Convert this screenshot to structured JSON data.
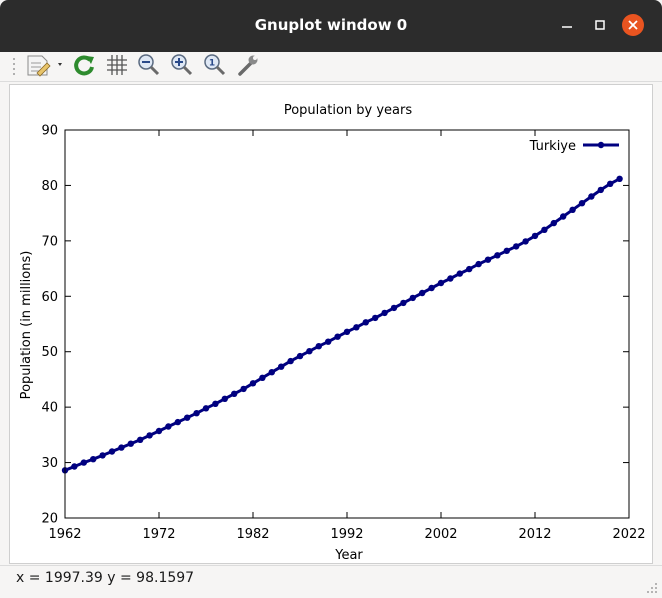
{
  "window": {
    "title": "Gnuplot window 0",
    "controls": [
      "minimize-icon",
      "maximize-icon",
      "close-icon"
    ],
    "close_color": "#e95420"
  },
  "toolbar": {
    "items": [
      {
        "icon": "export-icon"
      },
      {
        "icon": "replot-icon"
      },
      {
        "icon": "grid-icon"
      },
      {
        "icon": "zoom-out-icon"
      },
      {
        "icon": "zoom-in-icon"
      },
      {
        "icon": "zoom-reset-icon"
      },
      {
        "icon": "settings-icon"
      }
    ]
  },
  "status": {
    "text": "x = 1997.39 y = 98.1597"
  },
  "chart_data": {
    "type": "line",
    "title": "Population by years",
    "xlabel": "Year",
    "ylabel": "Population (in millions)",
    "xlim": [
      1962,
      2022
    ],
    "ylim": [
      20,
      90
    ],
    "xticks": [
      1962,
      1972,
      1982,
      1992,
      2002,
      2012,
      2022
    ],
    "yticks": [
      20,
      30,
      40,
      50,
      60,
      70,
      80,
      90
    ],
    "grid": false,
    "legend_position": "top-right",
    "series": [
      {
        "name": "Turkiye",
        "color": "#000080",
        "x": [
          1962,
          1963,
          1964,
          1965,
          1966,
          1967,
          1968,
          1969,
          1970,
          1971,
          1972,
          1973,
          1974,
          1975,
          1976,
          1977,
          1978,
          1979,
          1980,
          1981,
          1982,
          1983,
          1984,
          1985,
          1986,
          1987,
          1988,
          1989,
          1990,
          1991,
          1992,
          1993,
          1994,
          1995,
          1996,
          1997,
          1998,
          1999,
          2000,
          2001,
          2002,
          2003,
          2004,
          2005,
          2006,
          2007,
          2008,
          2009,
          2010,
          2011,
          2012,
          2013,
          2014,
          2015,
          2016,
          2017,
          2018,
          2019,
          2020,
          2021
        ],
        "values": [
          28.6,
          29.3,
          30.0,
          30.6,
          31.3,
          32.0,
          32.7,
          33.4,
          34.1,
          34.9,
          35.7,
          36.5,
          37.3,
          38.1,
          38.9,
          39.8,
          40.6,
          41.5,
          42.4,
          43.3,
          44.3,
          45.3,
          46.3,
          47.3,
          48.3,
          49.2,
          50.1,
          51.0,
          51.8,
          52.7,
          53.6,
          54.4,
          55.3,
          56.1,
          57.0,
          57.9,
          58.8,
          59.7,
          60.6,
          61.5,
          62.4,
          63.2,
          64.1,
          64.9,
          65.8,
          66.6,
          67.4,
          68.2,
          69.0,
          69.9,
          70.9,
          72.0,
          73.2,
          74.4,
          75.6,
          76.8,
          78.0,
          79.2,
          80.3,
          81.2
        ]
      }
    ]
  }
}
